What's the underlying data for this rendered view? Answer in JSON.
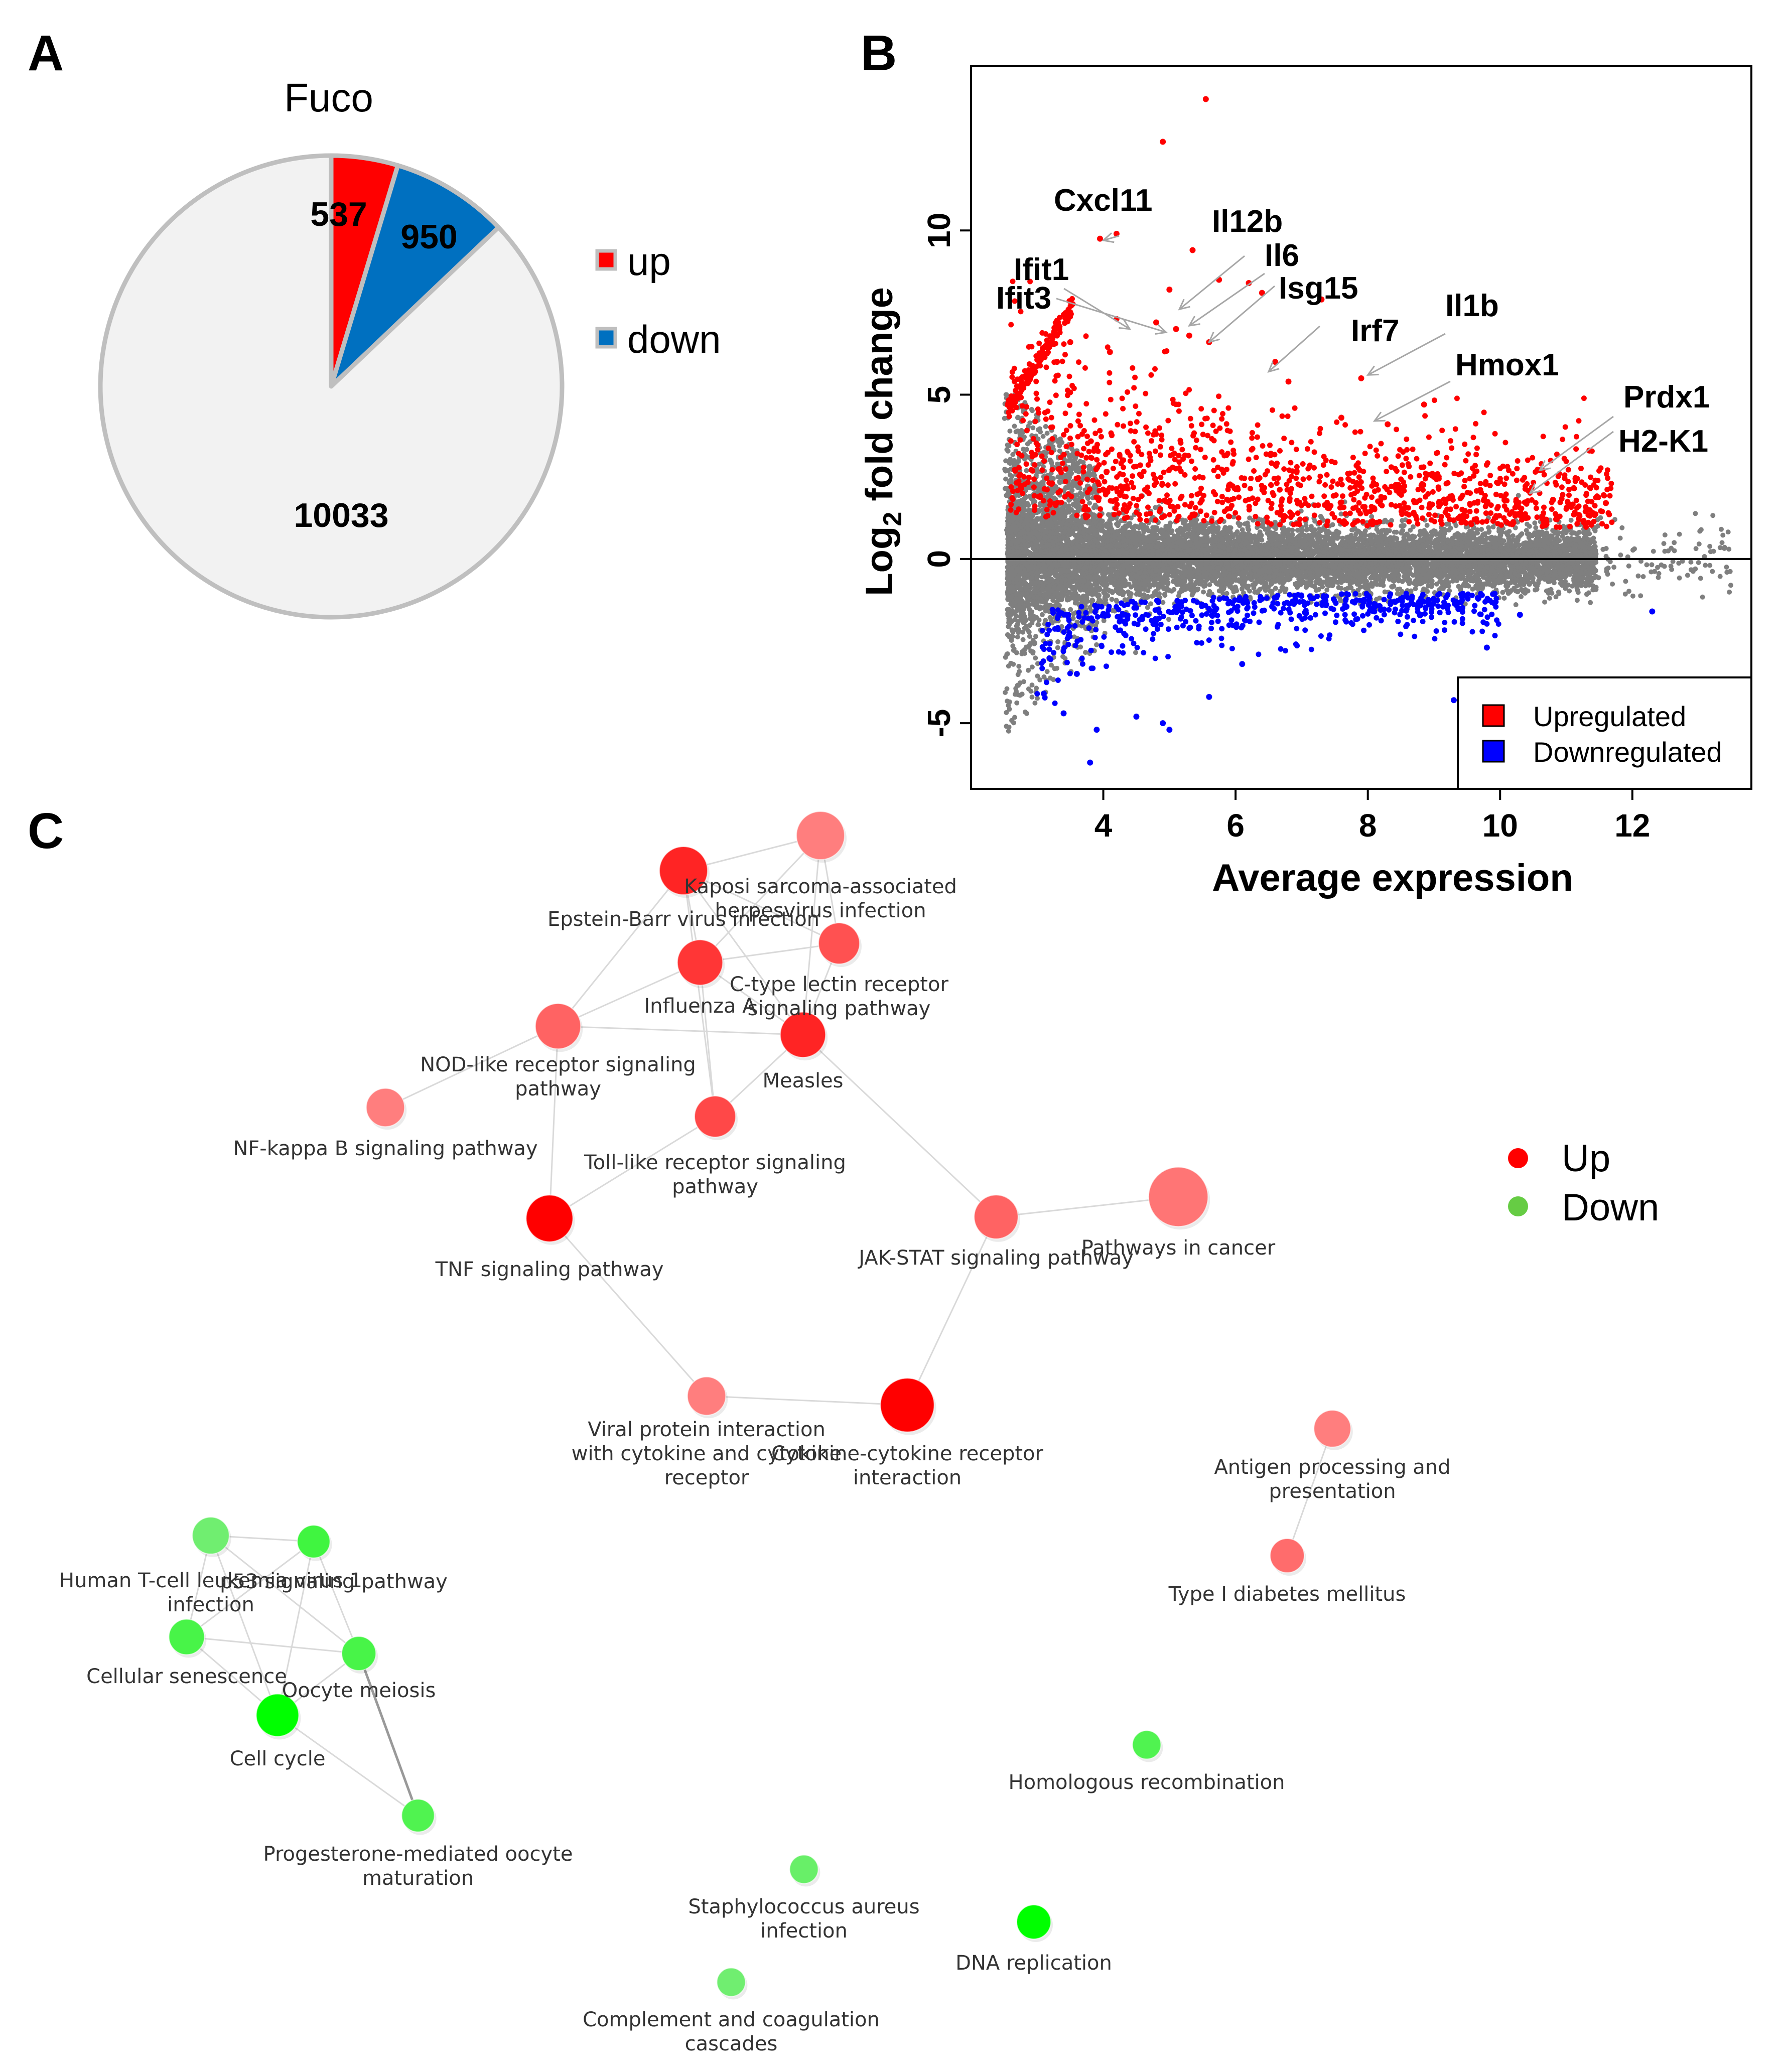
{
  "panels": {
    "a": "A",
    "b": "B",
    "c": "C"
  },
  "chart_data": [
    {
      "type": "pie",
      "title": "Fuco",
      "slices": [
        {
          "label": "up",
          "value": 537,
          "color": "#ff0000"
        },
        {
          "label": "down",
          "value": 950,
          "color": "#0070c0"
        },
        {
          "label": "",
          "value": 10033,
          "color": "#f2f2f2"
        }
      ],
      "legend": [
        {
          "label": "up",
          "color": "#ff0000"
        },
        {
          "label": "down",
          "color": "#0070c0"
        }
      ]
    },
    {
      "type": "scatter",
      "xlabel": "Average expression",
      "ylabel_main": "Log",
      "ylabel_sub": "2",
      "ylabel_rest": " fold change",
      "xlim": [
        2.0,
        13.8
      ],
      "ylim": [
        -7,
        15
      ],
      "xticks": [
        4,
        6,
        8,
        10,
        12
      ],
      "yticks": [
        -5,
        0,
        5,
        10
      ],
      "hline": 0,
      "legend": [
        {
          "label": "Upregulated",
          "color": "#ff0000"
        },
        {
          "label": "Downregulated",
          "color": "#0000ff"
        }
      ],
      "highlighted_points": [
        {
          "x": 5.55,
          "y": 14.0,
          "c": "up"
        },
        {
          "x": 4.9,
          "y": 12.7,
          "c": "up"
        },
        {
          "x": 4.2,
          "y": 9.9,
          "c": "up"
        },
        {
          "x": 3.95,
          "y": 9.75,
          "c": "up"
        },
        {
          "x": 5.35,
          "y": 9.4,
          "c": "up"
        },
        {
          "x": 5.0,
          "y": 8.2,
          "c": "up"
        },
        {
          "x": 5.75,
          "y": 8.5,
          "c": "up"
        },
        {
          "x": 6.2,
          "y": 8.4,
          "c": "up"
        },
        {
          "x": 6.4,
          "y": 8.1,
          "c": "up"
        },
        {
          "x": 7.3,
          "y": 7.9,
          "c": "up"
        },
        {
          "x": 4.8,
          "y": 7.2,
          "c": "up"
        },
        {
          "x": 5.1,
          "y": 7.0,
          "c": "up"
        },
        {
          "x": 5.3,
          "y": 6.8,
          "c": "up"
        },
        {
          "x": 5.6,
          "y": 6.6,
          "c": "up"
        },
        {
          "x": 6.6,
          "y": 6.0,
          "c": "up"
        },
        {
          "x": 7.9,
          "y": 5.5,
          "c": "up"
        },
        {
          "x": 8.85,
          "y": 4.7,
          "c": "up"
        },
        {
          "x": 11.35,
          "y": 3.3,
          "c": "up"
        },
        {
          "x": 11.6,
          "y": 1.7,
          "c": "up"
        },
        {
          "x": 10.8,
          "y": 1.8,
          "c": "up"
        },
        {
          "x": 10.6,
          "y": 2.7,
          "c": "up"
        },
        {
          "x": 11.2,
          "y": 1.3,
          "c": "up"
        },
        {
          "x": 9.7,
          "y": 2.1,
          "c": "up"
        },
        {
          "x": 9.0,
          "y": 2.5,
          "c": "up"
        },
        {
          "x": 3.5,
          "y": 6.6,
          "c": "up"
        },
        {
          "x": 3.3,
          "y": 6.0,
          "c": "up"
        },
        {
          "x": 4.1,
          "y": 6.3,
          "c": "up"
        },
        {
          "x": 6.8,
          "y": 5.4,
          "c": "up"
        },
        {
          "x": 7.6,
          "y": 4.3,
          "c": "up"
        },
        {
          "x": 8.3,
          "y": 4.1,
          "c": "up"
        },
        {
          "x": 9.8,
          "y": -2.7,
          "c": "down"
        },
        {
          "x": 10.3,
          "y": -1.7,
          "c": "down"
        },
        {
          "x": 12.3,
          "y": -1.6,
          "c": "down"
        },
        {
          "x": 3.8,
          "y": -6.2,
          "c": "down"
        },
        {
          "x": 4.5,
          "y": -4.8,
          "c": "down"
        },
        {
          "x": 4.9,
          "y": -5.0,
          "c": "down"
        },
        {
          "x": 5.0,
          "y": -5.2,
          "c": "down"
        },
        {
          "x": 3.4,
          "y": -4.7,
          "c": "down"
        },
        {
          "x": 3.1,
          "y": -4.1,
          "c": "down"
        },
        {
          "x": 3.9,
          "y": -5.2,
          "c": "down"
        },
        {
          "x": 5.6,
          "y": -4.2,
          "c": "down"
        },
        {
          "x": 9.3,
          "y": -4.3,
          "c": "down"
        },
        {
          "x": 3.6,
          "y": -3.5,
          "c": "down"
        },
        {
          "x": 6.1,
          "y": -3.2,
          "c": "down"
        }
      ],
      "annotations": [
        {
          "label": "Cxcl11",
          "x": 4.0,
          "y": 9.7
        },
        {
          "label": "Ifit1",
          "x": 4.4,
          "y": 7.0
        },
        {
          "label": "Ifit3",
          "x": 4.95,
          "y": 6.9
        },
        {
          "label": "Il12b",
          "x": 5.15,
          "y": 7.6
        },
        {
          "label": "Il6",
          "x": 5.3,
          "y": 7.1
        },
        {
          "label": "Isg15",
          "x": 5.6,
          "y": 6.6
        },
        {
          "label": "Irf7",
          "x": 6.5,
          "y": 5.7
        },
        {
          "label": "Il1b",
          "x": 8.0,
          "y": 5.6
        },
        {
          "label": "Hmox1",
          "x": 8.1,
          "y": 4.2
        },
        {
          "label": "Prdx1",
          "x": 10.6,
          "y": 2.7
        },
        {
          "label": "H2-K1",
          "x": 10.45,
          "y": 2.0
        }
      ]
    },
    {
      "type": "network",
      "legend": [
        {
          "label": "Up",
          "color": "#ff0000"
        },
        {
          "label": "Down",
          "color": "#66cc44"
        }
      ],
      "nodes": [
        {
          "id": "kaposi",
          "lines": [
            "Kaposi sarcoma-associated",
            "herpesvirus infection"
          ],
          "group": "up",
          "size": 3,
          "strength": 0.3
        },
        {
          "id": "ebv",
          "lines": [
            "Epstein-Barr virus infection"
          ],
          "group": "up",
          "size": 3,
          "strength": 0.8
        },
        {
          "id": "ctype",
          "lines": [
            "C-type lectin receptor",
            "signaling pathway"
          ],
          "group": "up",
          "size": 2.5,
          "strength": 0.55
        },
        {
          "id": "influenza",
          "lines": [
            "Influenza A"
          ],
          "group": "up",
          "size": 2.8,
          "strength": 0.7
        },
        {
          "id": "nod",
          "lines": [
            "NOD-like receptor signaling",
            "pathway"
          ],
          "group": "up",
          "size": 2.8,
          "strength": 0.45
        },
        {
          "id": "measles",
          "lines": [
            "Measles"
          ],
          "group": "up",
          "size": 2.8,
          "strength": 0.8
        },
        {
          "id": "nfkb",
          "lines": [
            "NF-kappa B signaling pathway"
          ],
          "group": "up",
          "size": 2.3,
          "strength": 0.3
        },
        {
          "id": "toll",
          "lines": [
            "Toll-like receptor signaling",
            "pathway"
          ],
          "group": "up",
          "size": 2.5,
          "strength": 0.6
        },
        {
          "id": "tnf",
          "lines": [
            "TNF signaling pathway"
          ],
          "group": "up",
          "size": 2.9,
          "strength": 1.0
        },
        {
          "id": "jakstat",
          "lines": [
            "JAK-STAT signaling pathway"
          ],
          "group": "up",
          "size": 2.7,
          "strength": 0.45
        },
        {
          "id": "cancer",
          "lines": [
            "Pathways in cancer"
          ],
          "group": "up",
          "size": 3.8,
          "strength": 0.35
        },
        {
          "id": "viral",
          "lines": [
            "Viral protein interaction",
            "with cytokine and cytokine",
            "receptor"
          ],
          "group": "up",
          "size": 2.3,
          "strength": 0.3
        },
        {
          "id": "cytokine",
          "lines": [
            "Cytokine-cytokine receptor",
            "interaction"
          ],
          "group": "up",
          "size": 3.4,
          "strength": 1.0
        },
        {
          "id": "antigen",
          "lines": [
            "Antigen processing and",
            "presentation"
          ],
          "group": "up",
          "size": 2.2,
          "strength": 0.3
        },
        {
          "id": "t1d",
          "lines": [
            "Type I diabetes mellitus"
          ],
          "group": "up",
          "size": 2.0,
          "strength": 0.4
        },
        {
          "id": "htlv",
          "lines": [
            "Human T-cell leukemia virus 1",
            "infection"
          ],
          "group": "down",
          "size": 2.2,
          "strength": 0.3
        },
        {
          "id": "p53",
          "lines": [
            "p53 signaling pathway"
          ],
          "group": "down",
          "size": 1.9,
          "strength": 0.6
        },
        {
          "id": "senescence",
          "lines": [
            "Cellular senescence"
          ],
          "group": "down",
          "size": 2.1,
          "strength": 0.55
        },
        {
          "id": "oocyte",
          "lines": [
            "Oocyte meiosis"
          ],
          "group": "down",
          "size": 2.0,
          "strength": 0.55
        },
        {
          "id": "cellcycle",
          "lines": [
            "Cell cycle"
          ],
          "group": "down",
          "size": 2.6,
          "strength": 1.0
        },
        {
          "id": "progesterone",
          "lines": [
            "Progesterone-mediated oocyte",
            "maturation"
          ],
          "group": "down",
          "size": 1.9,
          "strength": 0.5
        },
        {
          "id": "homologous",
          "lines": [
            "Homologous recombination"
          ],
          "group": "down",
          "size": 1.6,
          "strength": 0.5
        },
        {
          "id": "staph",
          "lines": [
            "Staphylococcus aureus",
            "infection"
          ],
          "group": "down",
          "size": 1.6,
          "strength": 0.35
        },
        {
          "id": "dnarep",
          "lines": [
            "DNA replication"
          ],
          "group": "down",
          "size": 2.0,
          "strength": 1.0
        },
        {
          "id": "complement",
          "lines": [
            "Complement and coagulation",
            "cascades"
          ],
          "group": "down",
          "size": 1.6,
          "strength": 0.3
        }
      ],
      "edges": [
        [
          "ebv",
          "kaposi"
        ],
        [
          "ebv",
          "influenza"
        ],
        [
          "ebv",
          "nod"
        ],
        [
          "ebv",
          "measles"
        ],
        [
          "ebv",
          "toll"
        ],
        [
          "ebv",
          "ctype"
        ],
        [
          "kaposi",
          "influenza"
        ],
        [
          "kaposi",
          "ctype"
        ],
        [
          "kaposi",
          "measles"
        ],
        [
          "influenza",
          "nod"
        ],
        [
          "influenza",
          "measles"
        ],
        [
          "influenza",
          "toll"
        ],
        [
          "influenza",
          "ctype"
        ],
        [
          "ctype",
          "measles"
        ],
        [
          "nod",
          "nfkb"
        ],
        [
          "nod",
          "tnf"
        ],
        [
          "nod",
          "measles"
        ],
        [
          "toll",
          "tnf"
        ],
        [
          "toll",
          "measles"
        ],
        [
          "measles",
          "jakstat"
        ],
        [
          "jakstat",
          "cancer"
        ],
        [
          "jakstat",
          "cytokine"
        ],
        [
          "tnf",
          "viral"
        ],
        [
          "viral",
          "cytokine"
        ],
        [
          "antigen",
          "t1d"
        ],
        [
          "htlv",
          "p53"
        ],
        [
          "htlv",
          "senescence"
        ],
        [
          "htlv",
          "oocyte"
        ],
        [
          "htlv",
          "cellcycle"
        ],
        [
          "p53",
          "senescence"
        ],
        [
          "p53",
          "oocyte"
        ],
        [
          "p53",
          "cellcycle"
        ],
        [
          "senescence",
          "oocyte"
        ],
        [
          "senescence",
          "cellcycle"
        ],
        [
          "oocyte",
          "cellcycle"
        ],
        [
          "oocyte",
          "progesterone"
        ],
        [
          "cellcycle",
          "progesterone"
        ]
      ]
    }
  ]
}
